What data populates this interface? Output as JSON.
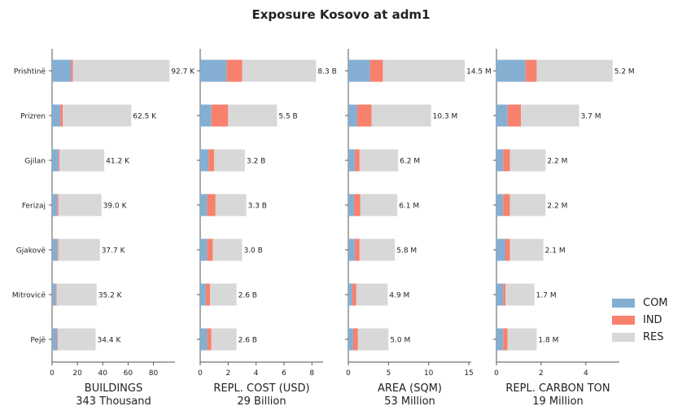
{
  "title": "Exposure Kosovo at adm1",
  "colors": {
    "COM": "#84afd2",
    "IND": "#f8816e",
    "RES": "#d8d8d8"
  },
  "legend": [
    {
      "key": "COM",
      "label": "COM"
    },
    {
      "key": "IND",
      "label": "IND"
    },
    {
      "key": "RES",
      "label": "RES"
    }
  ],
  "chart_data": {
    "type": "bar",
    "orientation": "horizontal",
    "stacked": true,
    "categories": [
      "Prishtinë",
      "Prizren",
      "Gjilan",
      "Ferizaj",
      "Gjakovë",
      "Mitrovicë",
      "Pejë"
    ],
    "panels": [
      {
        "xlabel": "BUILDINGS",
        "subtitle": "343 Thousand",
        "xlim": [
          0,
          97
        ],
        "xticks": [
          0,
          20,
          40,
          60,
          80
        ],
        "series": [
          {
            "name": "COM",
            "values": [
              15.0,
              6.5,
              5.0,
              4.0,
              4.3,
              3.0,
              4.0
            ]
          },
          {
            "name": "IND",
            "values": [
              1.5,
              2.0,
              0.8,
              1.0,
              0.7,
              0.6,
              0.6
            ]
          },
          {
            "name": "RES",
            "values": [
              76.2,
              54.0,
              35.4,
              34.0,
              32.7,
              31.6,
              29.8
            ]
          }
        ],
        "labels": [
          "92.7 K",
          "62.5 K",
          "41.2 K",
          "39.0 K",
          "37.7 K",
          "35.2 K",
          "34.4 K"
        ]
      },
      {
        "xlabel": "REPL. COST (USD)",
        "subtitle": "29 Billion",
        "xlim": [
          0,
          8.8
        ],
        "xticks": [
          0,
          2,
          4,
          6,
          8
        ],
        "series": [
          {
            "name": "COM",
            "values": [
              1.9,
              0.8,
              0.6,
              0.5,
              0.5,
              0.4,
              0.5
            ]
          },
          {
            "name": "IND",
            "values": [
              1.1,
              1.2,
              0.4,
              0.6,
              0.4,
              0.3,
              0.3
            ]
          },
          {
            "name": "RES",
            "values": [
              5.3,
              3.5,
              2.2,
              2.2,
              2.1,
              1.9,
              1.8
            ]
          }
        ],
        "labels": [
          "8.3 B",
          "5.5 B",
          "3.2 B",
          "3.3 B",
          "3.0 B",
          "2.6 B",
          "2.6 B"
        ]
      },
      {
        "xlabel": "AREA (SQM)",
        "subtitle": "53 Million",
        "xlim": [
          0,
          15.3
        ],
        "xticks": [
          0,
          5,
          10,
          15
        ],
        "series": [
          {
            "name": "COM",
            "values": [
              2.7,
              1.1,
              0.8,
              0.7,
              0.8,
              0.5,
              0.6
            ]
          },
          {
            "name": "IND",
            "values": [
              1.6,
              1.8,
              0.6,
              0.8,
              0.6,
              0.5,
              0.6
            ]
          },
          {
            "name": "RES",
            "values": [
              10.2,
              7.4,
              4.8,
              4.6,
              4.4,
              3.9,
              3.8
            ]
          }
        ],
        "labels": [
          "14.5 M",
          "10.3 M",
          "6.2 M",
          "6.1 M",
          "5.8 M",
          "4.9 M",
          "5.0 M"
        ]
      },
      {
        "xlabel": "REPL. CARBON TON",
        "subtitle": "19 Million",
        "xlim": [
          0,
          5.5
        ],
        "xticks": [
          0,
          2,
          4
        ],
        "series": [
          {
            "name": "COM",
            "values": [
              1.3,
              0.5,
              0.3,
              0.3,
              0.4,
              0.3,
              0.3
            ]
          },
          {
            "name": "IND",
            "values": [
              0.5,
              0.6,
              0.3,
              0.3,
              0.2,
              0.1,
              0.2
            ]
          },
          {
            "name": "RES",
            "values": [
              3.4,
              2.6,
              1.6,
              1.6,
              1.5,
              1.3,
              1.3
            ]
          }
        ],
        "labels": [
          "5.2 M",
          "3.7 M",
          "2.2 M",
          "2.2 M",
          "2.1 M",
          "1.7 M",
          "1.8 M"
        ]
      }
    ]
  }
}
